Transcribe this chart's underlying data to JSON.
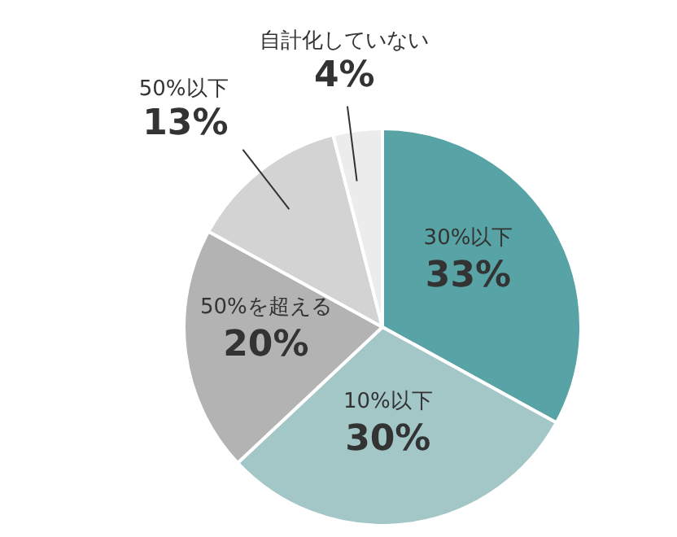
{
  "chart_data": {
    "type": "pie",
    "categories": [
      "30%以下",
      "10%以下",
      "50%を超える",
      "50%以下",
      "自計化していない"
    ],
    "values": [
      33,
      30,
      20,
      13,
      4
    ],
    "colors": [
      "#58a3a5",
      "#a3c6c7",
      "#b3b3b3",
      "#d3d3d3",
      "#ececec"
    ],
    "value_labels": [
      "33%",
      "30%",
      "20%",
      "13%",
      "4%"
    ],
    "legend": false
  }
}
